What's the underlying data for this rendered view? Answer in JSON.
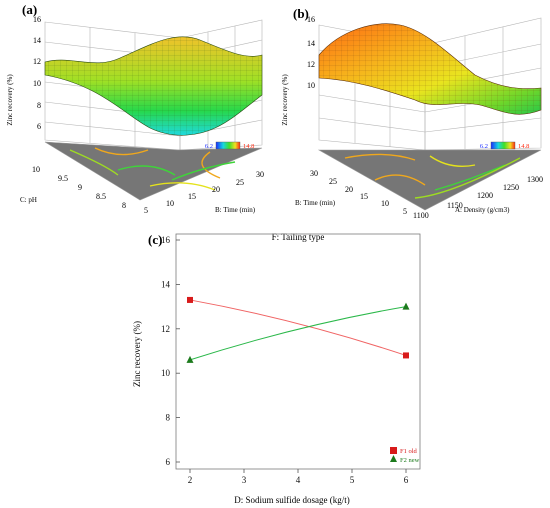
{
  "panels": {
    "a": {
      "label": "(a)",
      "zlabel": "Zinc recovery (%)",
      "z_ticks": [
        "6",
        "8",
        "10",
        "12",
        "14",
        "16"
      ],
      "x_axis_label": "B: Time (min)",
      "x_ticks": [
        "5",
        "10",
        "15",
        "20",
        "25",
        "30"
      ],
      "y_axis_label": "C: pH",
      "y_ticks": [
        "8",
        "8.5",
        "9",
        "9.5",
        "10"
      ],
      "colorbar_min": "6.2",
      "colorbar_max": "14.8"
    },
    "b": {
      "label": "(b)",
      "zlabel": "Zinc recovery (%)",
      "z_ticks": [
        "10",
        "12",
        "14",
        "16"
      ],
      "x_axis_label": "A: Density (g/cm3)",
      "x_ticks": [
        "1100",
        "1150",
        "1200",
        "1250",
        "1300"
      ],
      "y_axis_label": "B: Time (min)",
      "y_ticks": [
        "5",
        "10",
        "15",
        "20",
        "25",
        "30"
      ],
      "colorbar_min": "6.2",
      "colorbar_max": "14.8"
    }
  },
  "colors": {
    "f1": "#f06464",
    "f2": "#2bb84a",
    "marker_f1": "#d81b1b",
    "marker_f2": "#1c7a1c",
    "floor": "#767676"
  },
  "chart_data": [
    {
      "type": "surface",
      "panel": "a",
      "xlabel": "B: Time (min)",
      "ylabel": "C: pH",
      "zlabel": "Zinc recovery (%)",
      "x_range": [
        5,
        30
      ],
      "y_range": [
        8,
        10
      ],
      "z_range": [
        6,
        16
      ],
      "colorbar_range": [
        6.2,
        14.8
      ]
    },
    {
      "type": "surface",
      "panel": "b",
      "xlabel": "A: Density (g/cm3)",
      "ylabel": "B: Time (min)",
      "zlabel": "Zinc recovery (%)",
      "x_range": [
        1100,
        1300
      ],
      "y_range": [
        5,
        30
      ],
      "z_range": [
        10,
        16
      ],
      "colorbar_range": [
        6.2,
        14.8
      ]
    },
    {
      "type": "line",
      "panel": "c",
      "label": "(c)",
      "title": "F: Tailing type",
      "xlabel": "D: Sodium sulfide dosage (kg/t)",
      "ylabel": "Zinc recovery (%)",
      "x_ticks": [
        2,
        3,
        4,
        5,
        6
      ],
      "y_ticks": [
        6,
        8,
        10,
        12,
        14,
        16
      ],
      "xlim": [
        2,
        6
      ],
      "ylim": [
        6,
        16
      ],
      "grid": false,
      "legend_position": "bottom-right",
      "series": [
        {
          "name": "F1 old",
          "x": [
            2,
            6
          ],
          "values": [
            13.3,
            10.8
          ],
          "marker": "square"
        },
        {
          "name": "F2 new",
          "x": [
            2,
            6
          ],
          "values": [
            10.6,
            13.0
          ],
          "marker": "triangle"
        }
      ]
    }
  ]
}
